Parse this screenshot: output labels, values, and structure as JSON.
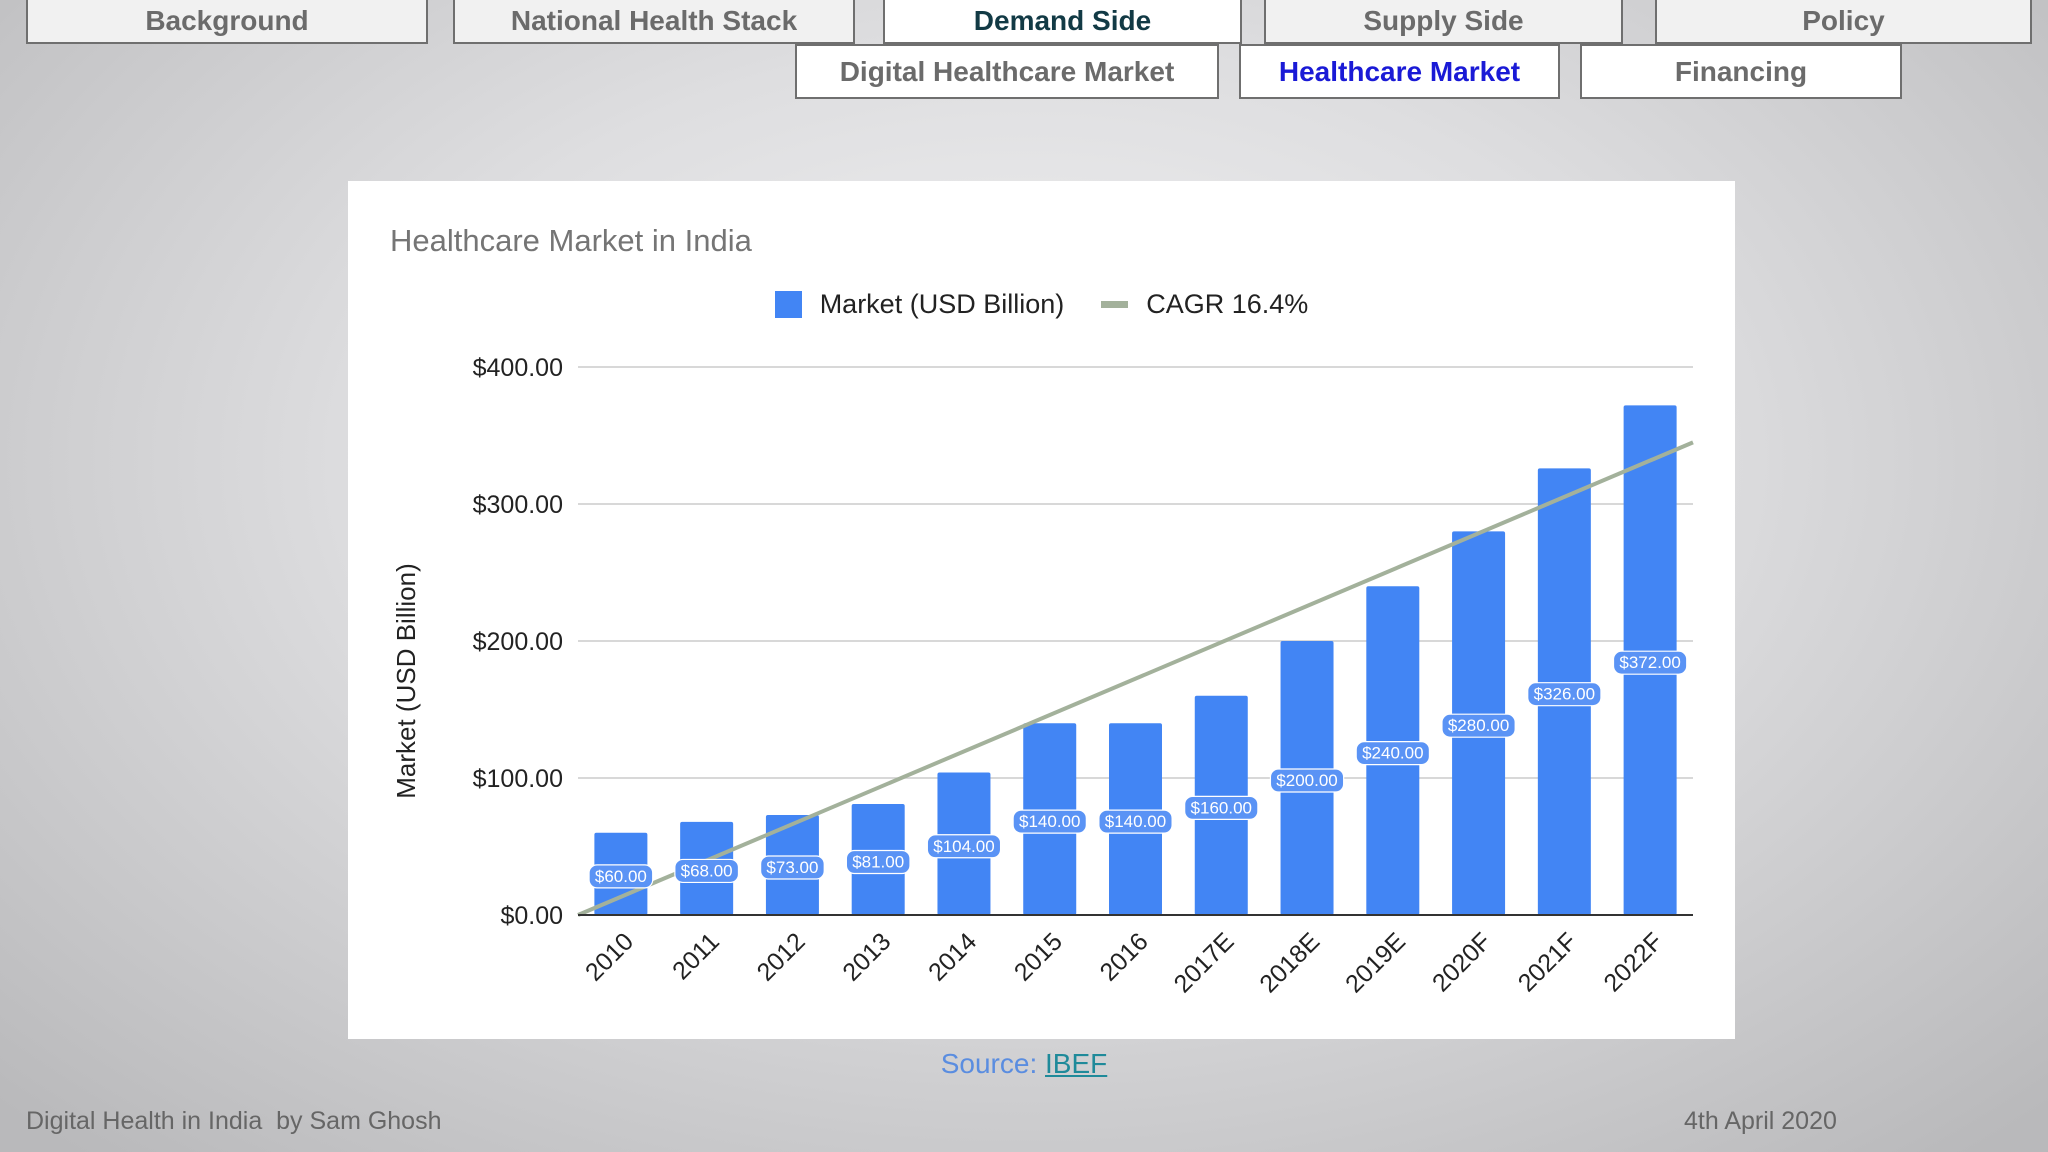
{
  "nav": {
    "tabs": [
      {
        "label": "Background",
        "active": false
      },
      {
        "label": "National Health Stack",
        "active": false
      },
      {
        "label": "Demand Side",
        "active": true
      },
      {
        "label": "Supply Side",
        "active": false
      },
      {
        "label": "Policy",
        "active": false
      }
    ],
    "subtabs": [
      {
        "label": "Digital Healthcare Market",
        "active": false
      },
      {
        "label": "Healthcare Market",
        "active": true
      },
      {
        "label": "Financing",
        "active": false
      }
    ]
  },
  "chart_data": {
    "type": "bar",
    "title": "Healthcare Market in India",
    "ylabel": "Market (USD Billion)",
    "xlabel": "",
    "categories": [
      "2010",
      "2011",
      "2012",
      "2013",
      "2014",
      "2015",
      "2016",
      "2017E",
      "2018E",
      "2019E",
      "2020F",
      "2021F",
      "2022F"
    ],
    "series": [
      {
        "name": "Market (USD Billion)",
        "values": [
          60,
          68,
          73,
          81,
          104,
          140,
          140,
          160,
          200,
          240,
          280,
          326,
          372
        ],
        "labels": [
          "$60.00",
          "$68.00",
          "$73.00",
          "$81.00",
          "$104.00",
          "$140.00",
          "$140.00",
          "$160.00",
          "$200.00",
          "$240.00",
          "$280.00",
          "$326.00",
          "$372.00"
        ],
        "color": "#4285f4"
      },
      {
        "name": "CAGR 16.4%",
        "type": "line",
        "start": 0,
        "end": 345,
        "color": "#a3b19b"
      }
    ],
    "ylim": [
      0,
      400
    ],
    "yticks": [
      0,
      100,
      200,
      300,
      400
    ],
    "ytick_labels": [
      "$0.00",
      "$100.00",
      "$200.00",
      "$300.00",
      "$400.00"
    ],
    "grid": true,
    "legend": "top-center"
  },
  "source": {
    "prefix": "Source: ",
    "link": "IBEF"
  },
  "footer": {
    "left": "Digital Health in India  by Sam Ghosh",
    "right": "4th April 2020"
  }
}
